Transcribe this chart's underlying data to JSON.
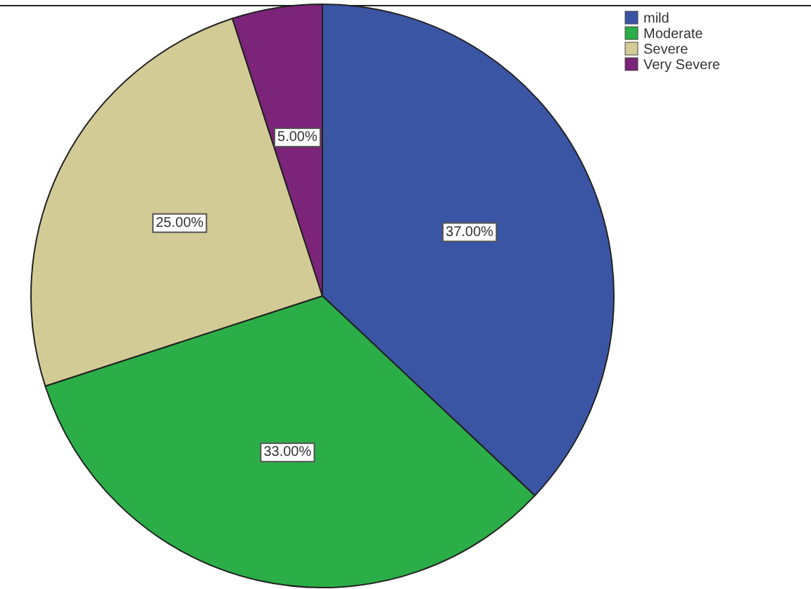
{
  "chart_data": {
    "type": "pie",
    "categories": [
      "mild",
      "Moderate",
      "Severe",
      "Very Severe"
    ],
    "values": [
      37,
      33,
      25,
      5
    ],
    "colors": [
      "#3b55a5",
      "#2bae47",
      "#d3cb96",
      "#7b2479"
    ],
    "value_labels": [
      "37.00%",
      "33.00%",
      "25.00%",
      "5.00%"
    ],
    "legend": "top right"
  }
}
